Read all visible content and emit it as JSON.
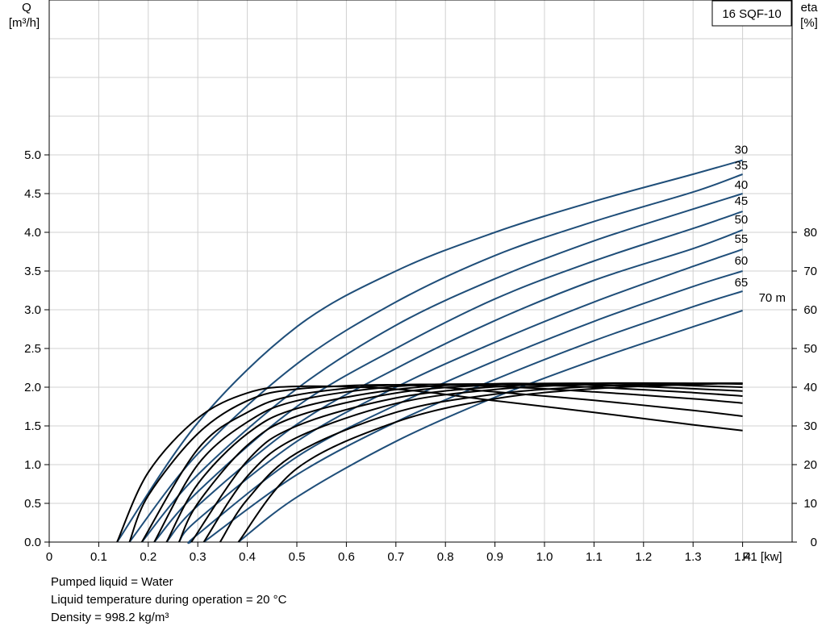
{
  "chart_data": {
    "type": "line",
    "title": "16 SQF-10",
    "x_axis": {
      "label": "P1 [kw]",
      "range": [
        0,
        1.5
      ],
      "ticks": [
        "0",
        "0.1",
        "0.2",
        "0.3",
        "0.4",
        "0.5",
        "0.6",
        "0.7",
        "0.8",
        "0.9",
        "1.0",
        "1.1",
        "1.2",
        "1.3",
        "1.4"
      ]
    },
    "y_left": {
      "label_line1": "Q",
      "label_line2": "[m³/h]",
      "range": [
        0,
        7
      ],
      "ticks": [
        "0.0",
        "0.5",
        "1.0",
        "1.5",
        "2.0",
        "2.5",
        "3.0",
        "3.5",
        "4.0",
        "4.5",
        "5.0"
      ]
    },
    "y_right": {
      "label_line1": "eta",
      "label_line2": "[%]",
      "range": [
        0,
        140
      ],
      "ticks": [
        "0",
        "10",
        "20",
        "30",
        "40",
        "50",
        "60",
        "70",
        "80"
      ]
    },
    "grid": true,
    "colors": {
      "flow_curve": "#1f4e79",
      "efficiency_curve": "#000000",
      "grid": "#d0d0d0"
    },
    "flow_series": [
      {
        "name": "30",
        "x": [
          0.137,
          0.3,
          0.5,
          0.7,
          0.9,
          1.1,
          1.3,
          1.4
        ],
        "y": [
          0.0,
          1.54,
          2.78,
          3.5,
          4.0,
          4.4,
          4.75,
          4.93
        ]
      },
      {
        "name": "35",
        "x": [
          0.162,
          0.3,
          0.5,
          0.7,
          0.9,
          1.1,
          1.3,
          1.4
        ],
        "y": [
          0.0,
          1.14,
          2.3,
          3.1,
          3.7,
          4.14,
          4.52,
          4.75
        ]
      },
      {
        "name": "40",
        "x": [
          0.187,
          0.3,
          0.5,
          0.7,
          0.9,
          1.1,
          1.3,
          1.4
        ],
        "y": [
          0.0,
          0.87,
          1.98,
          2.8,
          3.4,
          3.89,
          4.3,
          4.5
        ]
      },
      {
        "name": "45",
        "x": [
          0.212,
          0.3,
          0.5,
          0.7,
          0.9,
          1.1,
          1.3,
          1.4
        ],
        "y": [
          0.0,
          0.65,
          1.75,
          2.5,
          3.14,
          3.63,
          4.05,
          4.27
        ]
      },
      {
        "name": "50",
        "x": [
          0.237,
          0.3,
          0.5,
          0.7,
          0.9,
          1.1,
          1.3,
          1.4
        ],
        "y": [
          0.0,
          0.47,
          1.52,
          2.24,
          2.86,
          3.38,
          3.79,
          4.03
        ]
      },
      {
        "name": "55",
        "x": [
          0.262,
          0.3,
          0.5,
          0.7,
          0.9,
          1.1,
          1.3,
          1.4
        ],
        "y": [
          0.0,
          0.29,
          1.3,
          2.0,
          2.58,
          3.1,
          3.56,
          3.78
        ]
      },
      {
        "name": "60",
        "x": [
          0.287,
          0.3,
          0.5,
          0.7,
          0.9,
          1.1,
          1.3,
          1.4
        ],
        "y": [
          0.0,
          0.1,
          1.1,
          1.77,
          2.34,
          2.85,
          3.3,
          3.5
        ]
      },
      {
        "name": "65",
        "x": [
          0.312,
          0.5,
          0.7,
          0.9,
          1.1,
          1.3,
          1.4
        ],
        "y": [
          0.0,
          0.87,
          1.55,
          2.1,
          2.6,
          3.04,
          3.24
        ]
      },
      {
        "name": "70 m",
        "x": [
          0.382,
          0.5,
          0.7,
          0.9,
          1.1,
          1.3,
          1.4
        ],
        "y": [
          0.0,
          0.58,
          1.3,
          1.87,
          2.35,
          2.78,
          2.99
        ]
      }
    ],
    "efficiency_series": [
      {
        "x": [
          0.137,
          0.2,
          0.3,
          0.4,
          0.5,
          0.7,
          0.9,
          1.1,
          1.3,
          1.4
        ],
        "y": [
          0.0,
          18,
          32,
          38.5,
          40.2,
          39.5,
          36.5,
          33.5,
          30.3,
          28.8
        ]
      },
      {
        "x": [
          0.162,
          0.2,
          0.3,
          0.4,
          0.5,
          0.7,
          0.9,
          1.1,
          1.3,
          1.4
        ],
        "y": [
          0.0,
          12,
          28,
          36.5,
          39.5,
          40.6,
          38.8,
          36.6,
          34,
          32.5
        ]
      },
      {
        "x": [
          0.187,
          0.3,
          0.4,
          0.5,
          0.7,
          0.9,
          1.1,
          1.3,
          1.4
        ],
        "y": [
          0.0,
          24,
          33.5,
          38,
          40.6,
          40.2,
          38.8,
          37,
          35.9
        ]
      },
      {
        "x": [
          0.212,
          0.3,
          0.4,
          0.5,
          0.7,
          0.9,
          1.1,
          1.3,
          1.4
        ],
        "y": [
          0.0,
          20,
          31,
          36.5,
          40.2,
          40.8,
          40,
          38.6,
          37.7
        ]
      },
      {
        "x": [
          0.237,
          0.3,
          0.4,
          0.5,
          0.7,
          0.9,
          1.1,
          1.3,
          1.4
        ],
        "y": [
          0.0,
          15,
          28,
          34.5,
          39.4,
          40.9,
          40.6,
          39.6,
          39.0
        ]
      },
      {
        "x": [
          0.262,
          0.3,
          0.4,
          0.5,
          0.7,
          0.9,
          1.1,
          1.3,
          1.4
        ],
        "y": [
          0.0,
          10,
          25,
          32.5,
          38.5,
          40.6,
          41,
          40.4,
          40.0
        ]
      },
      {
        "x": [
          0.287,
          0.4,
          0.5,
          0.7,
          0.9,
          1.1,
          1.3,
          1.4
        ],
        "y": [
          0.0,
          21,
          30,
          37.2,
          40.1,
          41,
          41,
          40.8
        ]
      },
      {
        "x": [
          0.312,
          0.4,
          0.5,
          0.7,
          0.9,
          1.1,
          1.3,
          1.4
        ],
        "y": [
          0.0,
          17,
          27,
          35.8,
          39.4,
          40.8,
          41,
          41.0
        ]
      },
      {
        "x": [
          0.345,
          0.4,
          0.5,
          0.7,
          0.9,
          1.1,
          1.3,
          1.4
        ],
        "y": [
          0.0,
          11,
          23,
          33.5,
          38.2,
          40.2,
          40.9,
          41.0
        ]
      },
      {
        "x": [
          0.382,
          0.5,
          0.7,
          0.9,
          1.1,
          1.3,
          1.4
        ],
        "y": [
          0.0,
          19,
          31,
          37,
          39.6,
          40.7,
          41.0
        ]
      }
    ]
  },
  "footnotes": {
    "line1": "Pumped liquid = Water",
    "line2": "Liquid temperature during operation = 20 °C",
    "line3": "Density = 998.2 kg/m³"
  }
}
